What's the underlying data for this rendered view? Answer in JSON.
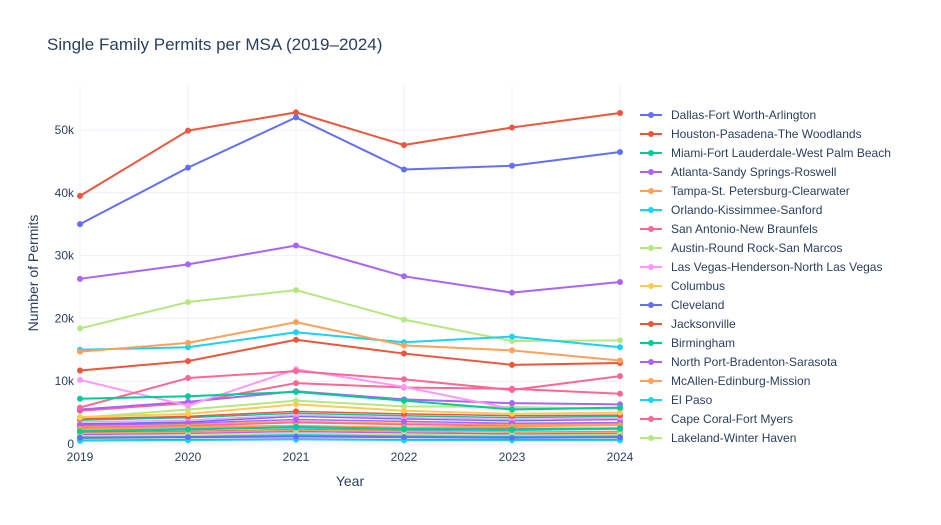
{
  "chart_data": {
    "type": "line",
    "title": "Single Family Permits per MSA (2019–2024)",
    "xlabel": "Year",
    "ylabel": "Number of Permits",
    "x": [
      2019,
      2020,
      2021,
      2022,
      2023,
      2024
    ],
    "xlim": [
      2019,
      2024
    ],
    "ylim": [
      0,
      57000
    ],
    "yticks": [
      0,
      10000,
      20000,
      30000,
      40000,
      50000
    ],
    "ytick_labels": [
      "0",
      "10k",
      "20k",
      "30k",
      "40k",
      "50k"
    ],
    "xtick_labels": [
      "2019",
      "2020",
      "2021",
      "2022",
      "2023",
      "2024"
    ],
    "grid": true,
    "legend": "right",
    "series": [
      {
        "name": "Dallas-Fort Worth-Arlington",
        "color": "#636efa",
        "values": [
          35000,
          44000,
          52000,
          43700,
          44300,
          46500
        ]
      },
      {
        "name": "Houston-Pasadena-The Woodlands",
        "color": "#ef553b",
        "values": [
          39500,
          49900,
          52800,
          47600,
          50400,
          52700
        ]
      },
      {
        "name": "Miami-Fort Lauderdale-West Palm Beach",
        "color": "#00cc96",
        "values": [
          7200,
          7600,
          8300,
          6900,
          5500,
          5800
        ]
      },
      {
        "name": "Atlanta-Sandy Springs-Roswell",
        "color": "#ab63fa",
        "values": [
          26300,
          28600,
          31600,
          26700,
          24100,
          25800
        ]
      },
      {
        "name": "Tampa-St. Petersburg-Clearwater",
        "color": "#ffa15a",
        "values": [
          14700,
          16100,
          19400,
          15700,
          14900,
          13300
        ]
      },
      {
        "name": "Orlando-Kissimmee-Sanford",
        "color": "#19d3f3",
        "values": [
          15000,
          15400,
          17800,
          16200,
          17100,
          15400
        ]
      },
      {
        "name": "San Antonio-New Braunfels",
        "color": "#ff6692",
        "values": [
          5800,
          10500,
          11600,
          10300,
          8600,
          10800
        ]
      },
      {
        "name": "Austin-Round Rock-San Marcos",
        "color": "#b6e880",
        "values": [
          18400,
          22600,
          24500,
          19800,
          16400,
          16500
        ]
      },
      {
        "name": "Las Vegas-Henderson-North Las Vegas",
        "color": "#ff97ff",
        "values": [
          10200,
          6100,
          11900,
          9100,
          5600,
          5700
        ]
      },
      {
        "name": "Columbus",
        "color": "#fecb52",
        "values": [
          4300,
          4800,
          6300,
          5300,
          4800,
          5000
        ]
      },
      {
        "name": "Cleveland",
        "color": "#636efa",
        "values": [
          1000,
          1100,
          1200,
          1100,
          1000,
          1100
        ]
      },
      {
        "name": "Jacksonville",
        "color": "#ef553b",
        "values": [
          11700,
          13200,
          16600,
          14400,
          12600,
          12900
        ]
      },
      {
        "name": "Birmingham",
        "color": "#00cc96",
        "values": [
          2000,
          2300,
          2700,
          2400,
          2300,
          2500
        ]
      },
      {
        "name": "North Port-Bradenton-Sarasota",
        "color": "#ab63fa",
        "values": [
          5500,
          6700,
          8400,
          7100,
          6500,
          6300
        ]
      },
      {
        "name": "McAllen-Edinburg-Mission",
        "color": "#ffa15a",
        "values": [
          2400,
          2700,
          2900,
          2600,
          2800,
          3000
        ]
      },
      {
        "name": "El Paso",
        "color": "#19d3f3",
        "values": [
          2300,
          2500,
          2600,
          2300,
          2200,
          2400
        ]
      },
      {
        "name": "Cape Coral-Fort Myers",
        "color": "#ff6692",
        "values": [
          5300,
          6500,
          9700,
          9000,
          8800,
          8000
        ]
      },
      {
        "name": "Lakeland-Winter Haven",
        "color": "#b6e880",
        "values": [
          4200,
          5500,
          6900,
          6000,
          5900,
          5600
        ]
      }
    ],
    "background_series": [
      {
        "color": "#636efa",
        "values": [
          3200,
          3500,
          4400,
          4000,
          3700,
          3900
        ]
      },
      {
        "color": "#ef553b",
        "values": [
          1800,
          2000,
          2300,
          2100,
          1900,
          2000
        ]
      },
      {
        "color": "#00cc96",
        "values": [
          3800,
          4200,
          4900,
          4500,
          4200,
          4400
        ]
      },
      {
        "color": "#ab63fa",
        "values": [
          1500,
          1700,
          2000,
          1800,
          1600,
          1700
        ]
      },
      {
        "color": "#ffa15a",
        "values": [
          2800,
          3100,
          3600,
          3300,
          3100,
          3200
        ]
      },
      {
        "color": "#19d3f3",
        "values": [
          1200,
          1300,
          1500,
          1400,
          1300,
          1300
        ]
      },
      {
        "color": "#ff6692",
        "values": [
          2600,
          2900,
          3400,
          3100,
          2900,
          3000
        ]
      },
      {
        "color": "#b6e880",
        "values": [
          900,
          1000,
          1200,
          1100,
          1000,
          1000
        ]
      },
      {
        "color": "#ff97ff",
        "values": [
          3500,
          3800,
          4600,
          4200,
          3900,
          4100
        ]
      },
      {
        "color": "#fecb52",
        "values": [
          2100,
          2300,
          2800,
          2500,
          2300,
          2400
        ]
      },
      {
        "color": "#636efa",
        "values": [
          600,
          700,
          800,
          700,
          700,
          700
        ]
      },
      {
        "color": "#ef553b",
        "values": [
          4000,
          4400,
          5200,
          4800,
          4500,
          4600
        ]
      },
      {
        "color": "#00cc96",
        "values": [
          1000,
          1100,
          1300,
          1200,
          1100,
          1100
        ]
      },
      {
        "color": "#ab63fa",
        "values": [
          3000,
          3300,
          3900,
          3600,
          3300,
          3400
        ]
      },
      {
        "color": "#ffa15a",
        "values": [
          1700,
          1900,
          2200,
          2000,
          1900,
          1900
        ]
      },
      {
        "color": "#19d3f3",
        "values": [
          500,
          600,
          700,
          600,
          600,
          600
        ]
      },
      {
        "color": "#ff6692",
        "values": [
          2200,
          2400,
          2900,
          2600,
          2500,
          2500
        ]
      },
      {
        "color": "#b6e880",
        "values": [
          1300,
          1400,
          1700,
          1500,
          1400,
          1500
        ]
      }
    ]
  }
}
